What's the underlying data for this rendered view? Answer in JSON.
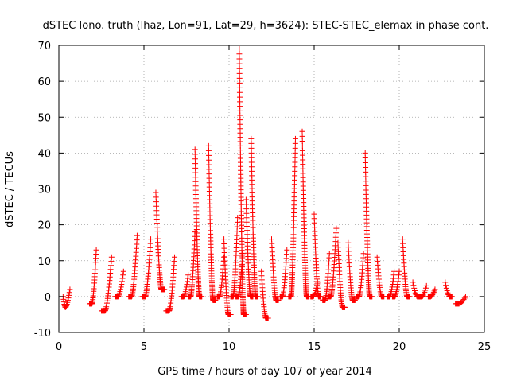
{
  "chart_data": {
    "type": "scatter",
    "title": "dSTEC Iono. truth (lhaz, Lon=91, Lat=29, h=3624): STEC-STEC_elemax in phase cont.",
    "xlabel": "GPS time / hours of day 107 of year 2014",
    "ylabel": "dSTEC  / TECUs",
    "xlim": [
      0,
      25
    ],
    "ylim": [
      -10,
      70
    ],
    "x_ticks": [
      0,
      5,
      10,
      15,
      20,
      25
    ],
    "y_ticks": [
      -10,
      0,
      10,
      20,
      30,
      40,
      50,
      60,
      70
    ],
    "grid": true,
    "marker": "+",
    "marker_color": "#ff0000",
    "series": [
      {
        "arcs": [
          {
            "x0": 0.25,
            "x1": 0.65,
            "ys": 0,
            "ye": 2,
            "ymin": -3,
            "ymax": 2
          },
          {
            "x0": 1.8,
            "x1": 2.2,
            "ys": -2,
            "ye": 13,
            "ymin": -2,
            "ymax": 13
          },
          {
            "x0": 2.5,
            "x1": 3.1,
            "ys": -4,
            "ye": 11,
            "ymin": -4,
            "ymax": 11
          },
          {
            "x0": 3.3,
            "x1": 3.8,
            "ys": 0,
            "ye": 7,
            "ymin": 0,
            "ymax": 7
          },
          {
            "x0": 4.1,
            "x1": 4.6,
            "ys": 0,
            "ye": 17,
            "ymin": 0,
            "ymax": 17
          },
          {
            "x0": 4.9,
            "x1": 5.4,
            "ys": 0,
            "ye": 16,
            "ymin": 0,
            "ymax": 16
          },
          {
            "x0": 5.7,
            "x1": 6.2,
            "ys": 29,
            "ye": 2,
            "ymin": 2,
            "ymax": 29
          },
          {
            "x0": 6.3,
            "x1": 6.8,
            "ys": -4,
            "ye": 11,
            "ymin": -4,
            "ymax": 11
          },
          {
            "x0": 7.2,
            "x1": 7.6,
            "ys": 0,
            "ye": 6,
            "ymin": 0,
            "ymax": 6
          },
          {
            "x0": 7.6,
            "x1": 8.0,
            "ys": 0,
            "ye": 18,
            "ymin": 0,
            "ymax": 18
          },
          {
            "x0": 8.0,
            "x1": 8.4,
            "ys": 41,
            "ye": 0,
            "ymin": 0,
            "ymax": 41
          },
          {
            "x0": 8.8,
            "x1": 9.2,
            "ys": 42,
            "ye": -1,
            "ymin": -1,
            "ymax": 42
          },
          {
            "x0": 9.3,
            "x1": 9.7,
            "ys": 0,
            "ye": 11,
            "ymin": 0,
            "ymax": 11
          },
          {
            "x0": 9.7,
            "x1": 10.1,
            "ys": 16,
            "ye": -5,
            "ymin": -5,
            "ymax": 16
          },
          {
            "x0": 10.1,
            "x1": 10.5,
            "ys": 0,
            "ye": 22,
            "ymin": 0,
            "ymax": 22
          },
          {
            "x0": 10.4,
            "x1": 10.8,
            "ys": 0,
            "ye": 12,
            "ymin": 0,
            "ymax": 12
          },
          {
            "x0": 10.6,
            "x1": 11.0,
            "ys": 69,
            "ye": -5,
            "ymin": -5,
            "ymax": 69
          },
          {
            "x0": 11.0,
            "x1": 11.4,
            "ys": 27,
            "ye": 0,
            "ymin": 0,
            "ymax": 27
          },
          {
            "x0": 11.3,
            "x1": 11.7,
            "ys": 44,
            "ye": 0,
            "ymin": 0,
            "ymax": 44
          },
          {
            "x0": 11.9,
            "x1": 12.3,
            "ys": 7,
            "ye": -6,
            "ymin": -6,
            "ymax": 7
          },
          {
            "x0": 12.5,
            "x1": 12.9,
            "ys": 16,
            "ye": -1,
            "ymin": -1,
            "ymax": 16
          },
          {
            "x0": 13.0,
            "x1": 13.4,
            "ys": 0,
            "ye": 13,
            "ymin": 0,
            "ymax": 13
          },
          {
            "x0": 13.5,
            "x1": 13.9,
            "ys": 0,
            "ye": 44,
            "ymin": 0,
            "ymax": 44
          },
          {
            "x0": 14.3,
            "x1": 14.7,
            "ys": 46,
            "ye": 0,
            "ymin": 0,
            "ymax": 46
          },
          {
            "x0": 14.8,
            "x1": 15.2,
            "ys": 0,
            "ye": 4,
            "ymin": 0,
            "ymax": 4
          },
          {
            "x0": 15.0,
            "x1": 15.4,
            "ys": 23,
            "ye": 0,
            "ymin": 0,
            "ymax": 23
          },
          {
            "x0": 15.5,
            "x1": 15.9,
            "ys": -1,
            "ye": 12,
            "ymin": -1,
            "ymax": 12
          },
          {
            "x0": 15.8,
            "x1": 16.3,
            "ys": 0,
            "ye": 19,
            "ymin": 0,
            "ymax": 19
          },
          {
            "x0": 16.4,
            "x1": 16.8,
            "ys": 15,
            "ye": -3,
            "ymin": -3,
            "ymax": 15
          },
          {
            "x0": 17.0,
            "x1": 17.4,
            "ys": 15,
            "ye": -1,
            "ymin": -1,
            "ymax": 15
          },
          {
            "x0": 17.5,
            "x1": 17.9,
            "ys": 0,
            "ye": 12,
            "ymin": 0,
            "ymax": 12
          },
          {
            "x0": 18.0,
            "x1": 18.4,
            "ys": 40,
            "ye": 0,
            "ymin": 0,
            "ymax": 40
          },
          {
            "x0": 18.7,
            "x1": 19.1,
            "ys": 11,
            "ye": 0,
            "ymin": 0,
            "ymax": 11
          },
          {
            "x0": 19.3,
            "x1": 19.7,
            "ys": 0,
            "ye": 7,
            "ymin": 0,
            "ymax": 7
          },
          {
            "x0": 19.6,
            "x1": 20.0,
            "ys": 0,
            "ye": 7,
            "ymin": 0,
            "ymax": 7
          },
          {
            "x0": 20.2,
            "x1": 20.6,
            "ys": 16,
            "ye": 0,
            "ymin": 0,
            "ymax": 16
          },
          {
            "x0": 20.8,
            "x1": 21.2,
            "ys": 4,
            "ye": 0,
            "ymin": 0,
            "ymax": 4
          },
          {
            "x0": 21.2,
            "x1": 21.6,
            "ys": 0,
            "ye": 3,
            "ymin": 0,
            "ymax": 3
          },
          {
            "x0": 21.7,
            "x1": 22.1,
            "ys": 0,
            "ye": 2,
            "ymin": 0,
            "ymax": 2
          },
          {
            "x0": 22.7,
            "x1": 23.1,
            "ys": 4,
            "ye": 0,
            "ymin": 0,
            "ymax": 4
          },
          {
            "x0": 23.3,
            "x1": 23.9,
            "ys": -2,
            "ye": 0,
            "ymin": -2,
            "ymax": 0
          }
        ]
      }
    ]
  }
}
